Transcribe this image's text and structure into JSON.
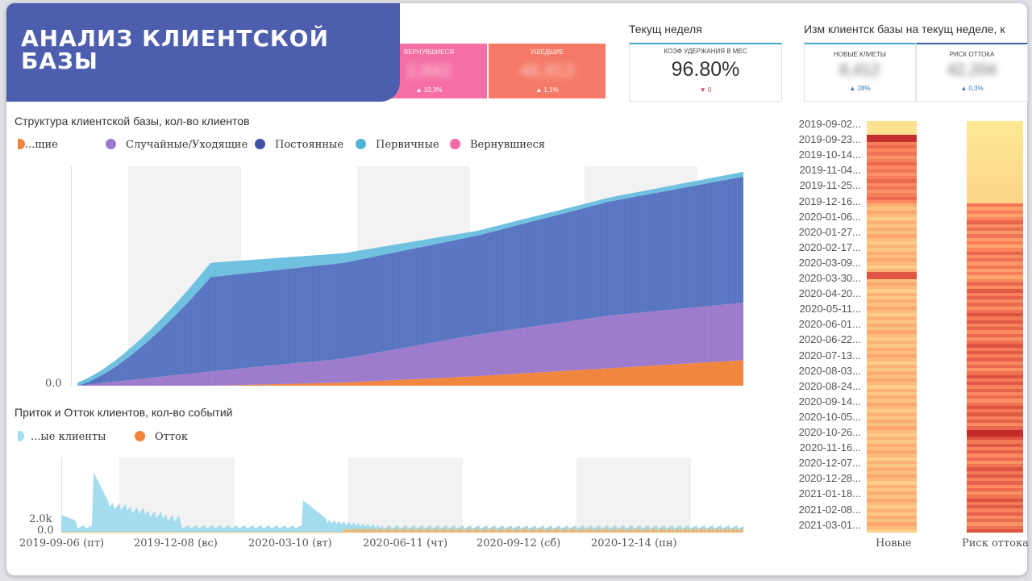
{
  "banner": {
    "title": "АНАЛИЗ КЛИЕНТСКОЙ БАЗЫ"
  },
  "kpis": [
    {
      "label": "ВЕРНУВШИЕСЯ",
      "value": "2,842",
      "delta": "▲ 10,3%",
      "color": "#f56fa4"
    },
    {
      "label": "УШЕДШИЕ",
      "value": "46,913",
      "delta": "▲ 1,1%",
      "color": "#f57967"
    }
  ],
  "week_block": {
    "title": "Текущ неделя",
    "retention_label": "КОЭФ УДЕРЖАНИЯ В МЕС",
    "retention_value": "96.80%",
    "retention_delta": "▼ 0"
  },
  "change_block": {
    "title": "Изм клиентск базы на текущ неделе, к",
    "cards": [
      {
        "label": "НОВЫЕ КЛИЕТЫ",
        "value": "6,412",
        "delta": "▲ 28%"
      },
      {
        "label": "РИСК ОТТОКА",
        "value": "42,204",
        "delta": "▲ 0,3%"
      }
    ]
  },
  "charts": {
    "structure_title": "Структура клиентской базы, кол-во клиентов",
    "flow_title": "Приток и Отток клиентов, кол-во событий"
  },
  "chart_data": [
    {
      "type": "area",
      "title": "Структура клиентской базы, кол-во клиентов",
      "stacked": true,
      "legend": [
        "...щие",
        "Случайные/Уходящие",
        "Постоянные",
        "Первичные",
        "Вернувшиеся"
      ],
      "x": [
        0,
        20,
        40,
        60,
        80,
        100
      ],
      "x_unit": "% of time range 2019-09-06 to 2021-03-01",
      "series": [
        {
          "name": "...щие",
          "color": "#f0843c",
          "values": [
            0,
            0,
            4,
            12,
            22,
            32
          ]
        },
        {
          "name": "Случайные/Уходящие",
          "color": "#9b79cb",
          "values": [
            0,
            18,
            30,
            52,
            66,
            72
          ]
        },
        {
          "name": "Постоянные",
          "color": "#5773c0",
          "values": [
            2,
            118,
            120,
            124,
            143,
            158
          ]
        },
        {
          "name": "Первичные",
          "color": "#6cc0df",
          "values": [
            4,
            18,
            12,
            6,
            5,
            6
          ]
        },
        {
          "name": "Вернувшиеся",
          "color": "#f26aa6",
          "values": [
            0,
            0,
            0,
            0,
            0,
            0
          ]
        }
      ],
      "ytick_visible": "0.0"
    },
    {
      "type": "area",
      "title": "Приток и Отток клиентов, кол-во событий",
      "legend": [
        "...ые клиенты",
        "Отток"
      ],
      "x_ticks": [
        "2019-09-06 (пт)",
        "2019-12-08 (вс)",
        "2020-03-10 (вт)",
        "2020-06-11 (чт)",
        "2020-09-12 (сб)",
        "2020-12-14 (пн)"
      ],
      "y_ticks": [
        "0.0",
        "2.0k"
      ],
      "series": [
        {
          "name": "...ые клиенты",
          "color": "#a3dcef"
        },
        {
          "name": "Отток",
          "color": "#f0843c"
        }
      ]
    },
    {
      "type": "heatmap",
      "columns": [
        "Новые",
        "Риск оттока"
      ],
      "rows": [
        "2019-09-02...",
        "2019-09-23...",
        "2019-10-14...",
        "2019-11-04...",
        "2019-11-25...",
        "2019-12-16...",
        "2020-01-06...",
        "2020-01-27...",
        "2020-02-17...",
        "2020-03-09...",
        "2020-03-30...",
        "2020-04-20...",
        "2020-05-11...",
        "2020-06-01...",
        "2020-06-22...",
        "2020-07-13...",
        "2020-08-03...",
        "2020-08-24...",
        "2020-09-14...",
        "2020-10-05...",
        "2020-10-26...",
        "2020-11-16...",
        "2020-12-07...",
        "2020-12-28...",
        "2021-01-18...",
        "2021-02-08...",
        "2021-03-01..."
      ]
    }
  ],
  "structure_xrange": {
    "shaded_periods": 3
  }
}
